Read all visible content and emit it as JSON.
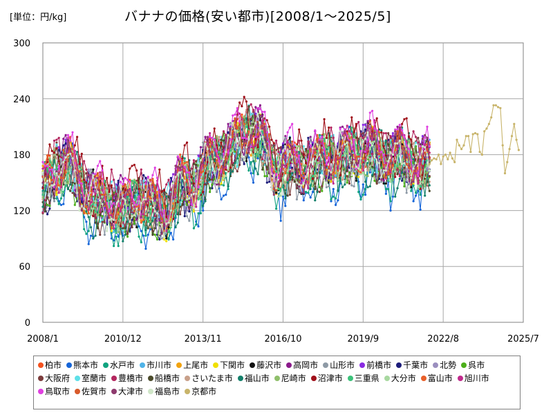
{
  "header": {
    "unit": "[単位：円/kg]",
    "title": "バナナの価格(安い都市)[2008/1～2025/5]"
  },
  "chart_data": {
    "type": "line",
    "title": "バナナの価格(安い都市)[2008/1～2025/5]",
    "unit": "[単位：円/kg]",
    "xlim": [
      "2008-01",
      "2025-07"
    ],
    "ylim": [
      0,
      300
    ],
    "y_ticks": [
      0,
      60,
      120,
      180,
      240,
      300
    ],
    "x_ticks": [
      {
        "label": "2008/1",
        "date": "2008-01"
      },
      {
        "label": "2010/12",
        "date": "2010-12"
      },
      {
        "label": "2013/11",
        "date": "2013-11"
      },
      {
        "label": "2016/10",
        "date": "2016-10"
      },
      {
        "label": "2019/9",
        "date": "2019-09"
      },
      {
        "label": "2022/8",
        "date": "2022-08"
      },
      {
        "label": "2025/7",
        "date": "2025-07"
      }
    ],
    "grid": true,
    "legend_position": "bottom",
    "series_level_points": [
      [
        "2008-01",
        140
      ],
      [
        "2008-07",
        165
      ],
      [
        "2009-01",
        170
      ],
      [
        "2009-07",
        140
      ],
      [
        "2010-01",
        130
      ],
      [
        "2010-07",
        125
      ],
      [
        "2011-01",
        120
      ],
      [
        "2011-07",
        132
      ],
      [
        "2012-01",
        125
      ],
      [
        "2012-07",
        115
      ],
      [
        "2013-01",
        150
      ],
      [
        "2013-07",
        145
      ],
      [
        "2014-01",
        170
      ],
      [
        "2014-07",
        175
      ],
      [
        "2015-01",
        190
      ],
      [
        "2015-07",
        205
      ],
      [
        "2016-01",
        195
      ],
      [
        "2016-07",
        160
      ],
      [
        "2017-01",
        170
      ],
      [
        "2017-07",
        165
      ],
      [
        "2018-01",
        172
      ],
      [
        "2018-07",
        175
      ],
      [
        "2019-01",
        180
      ],
      [
        "2019-07",
        182
      ],
      [
        "2020-01",
        185
      ],
      [
        "2020-07",
        175
      ],
      [
        "2021-01",
        180
      ],
      [
        "2021-07",
        170
      ],
      [
        "2022-01",
        168
      ]
    ],
    "series": [
      {
        "name": "柏市",
        "color": "#f4511e",
        "offset": 3,
        "amp": 1.0,
        "seed": 1
      },
      {
        "name": "熊本市",
        "color": "#1565d8",
        "offset": -14,
        "amp": 1.5,
        "seed": 2
      },
      {
        "name": "水戸市",
        "color": "#10a37f",
        "offset": -10,
        "amp": 1.4,
        "seed": 3
      },
      {
        "name": "市川市",
        "color": "#4fb3e8",
        "offset": 2,
        "amp": 1.0,
        "seed": 4
      },
      {
        "name": "上尾市",
        "color": "#f2a30f",
        "offset": 1,
        "amp": 1.0,
        "seed": 5
      },
      {
        "name": "下関市",
        "color": "#f0e000",
        "offset": 0,
        "amp": 1.0,
        "seed": 6
      },
      {
        "name": "藤沢市",
        "color": "#111111",
        "offset": 2,
        "amp": 1.1,
        "seed": 7
      },
      {
        "name": "高岡市",
        "color": "#8b1a8b",
        "offset": 6,
        "amp": 1.1,
        "seed": 8
      },
      {
        "name": "山形市",
        "color": "#8e9aa6",
        "offset": -3,
        "amp": 1.2,
        "seed": 9
      },
      {
        "name": "前橋市",
        "color": "#8a2be2",
        "offset": 4,
        "amp": 1.0,
        "seed": 10
      },
      {
        "name": "千葉市",
        "color": "#1c1c7a",
        "offset": -2,
        "amp": 1.2,
        "seed": 11
      },
      {
        "name": "北勢",
        "color": "#9b8fbf",
        "offset": -1,
        "amp": 1.0,
        "seed": 12
      },
      {
        "name": "呉市",
        "color": "#4caf1a",
        "offset": -4,
        "amp": 1.1,
        "seed": 13
      },
      {
        "name": "大阪府",
        "color": "#7b3b3b",
        "offset": -2,
        "amp": 1.2,
        "seed": 14
      },
      {
        "name": "室蘭市",
        "color": "#5ee0e8",
        "offset": 2,
        "amp": 1.0,
        "seed": 15
      },
      {
        "name": "豊橋市",
        "color": "#b3265e",
        "offset": 8,
        "amp": 1.1,
        "seed": 16
      },
      {
        "name": "船橋市",
        "color": "#4b4b2b",
        "offset": -3,
        "amp": 1.1,
        "seed": 17
      },
      {
        "name": "さいたま市",
        "color": "#c8a08a",
        "offset": 0,
        "amp": 1.0,
        "seed": 18
      },
      {
        "name": "福山市",
        "color": "#14806b",
        "offset": -6,
        "amp": 1.3,
        "seed": 19
      },
      {
        "name": "尼崎市",
        "color": "#8fbf6b",
        "offset": 1,
        "amp": 1.0,
        "seed": 20
      },
      {
        "name": "沼津市",
        "color": "#a0101a",
        "offset": 10,
        "amp": 1.3,
        "seed": 21
      },
      {
        "name": "三重県",
        "color": "#3cc27a",
        "offset": 0,
        "amp": 1.0,
        "seed": 22
      },
      {
        "name": "大分市",
        "color": "#a8d8a0",
        "offset": -1,
        "amp": 1.0,
        "seed": 23
      },
      {
        "name": "富山市",
        "color": "#e8602a",
        "offset": 5,
        "amp": 1.0,
        "seed": 24
      },
      {
        "name": "旭川市",
        "color": "#c02a8c",
        "offset": 4,
        "amp": 1.1,
        "seed": 25
      },
      {
        "name": "鳥取市",
        "color": "#e040e0",
        "offset": 12,
        "amp": 1.2,
        "seed": 26
      },
      {
        "name": "佐賀市",
        "color": "#d85a2a",
        "offset": 3,
        "amp": 1.0,
        "seed": 27
      },
      {
        "name": "大津市",
        "color": "#8e3a6e",
        "offset": 2,
        "amp": 1.1,
        "seed": 28
      },
      {
        "name": "福島市",
        "color": "#d0e6c8",
        "offset": -1,
        "amp": 1.0,
        "seed": 29
      },
      {
        "name": "京都市",
        "color": "#c8b46a",
        "points": [
          [
            "2022-02",
            170
          ],
          [
            "2022-03",
            174
          ],
          [
            "2022-04",
            176
          ],
          [
            "2022-05",
            175
          ],
          [
            "2022-06",
            180
          ],
          [
            "2022-07",
            170
          ],
          [
            "2022-08",
            178
          ],
          [
            "2022-09",
            180
          ],
          [
            "2022-10",
            175
          ],
          [
            "2022-11",
            182
          ],
          [
            "2022-12",
            176
          ],
          [
            "2023-01",
            172
          ],
          [
            "2023-02",
            196
          ],
          [
            "2023-03",
            190
          ],
          [
            "2023-04",
            186
          ],
          [
            "2023-05",
            190
          ],
          [
            "2023-06",
            200
          ],
          [
            "2023-07",
            200
          ],
          [
            "2023-08",
            183
          ],
          [
            "2023-09",
            202
          ],
          [
            "2023-10",
            203
          ],
          [
            "2023-11",
            202
          ],
          [
            "2023-12",
            183
          ],
          [
            "2024-01",
            180
          ],
          [
            "2024-02",
            205
          ],
          [
            "2024-03",
            208
          ],
          [
            "2024-04",
            213
          ],
          [
            "2024-05",
            220
          ],
          [
            "2024-06",
            233
          ],
          [
            "2024-07",
            233
          ],
          [
            "2024-08",
            231
          ],
          [
            "2024-09",
            230
          ],
          [
            "2024-10",
            190
          ],
          [
            "2024-11",
            160
          ],
          [
            "2024-12",
            172
          ],
          [
            "2025-01",
            186
          ],
          [
            "2025-02",
            200
          ],
          [
            "2025-03",
            213
          ],
          [
            "2025-04",
            196
          ],
          [
            "2025-05",
            185
          ]
        ]
      }
    ]
  }
}
